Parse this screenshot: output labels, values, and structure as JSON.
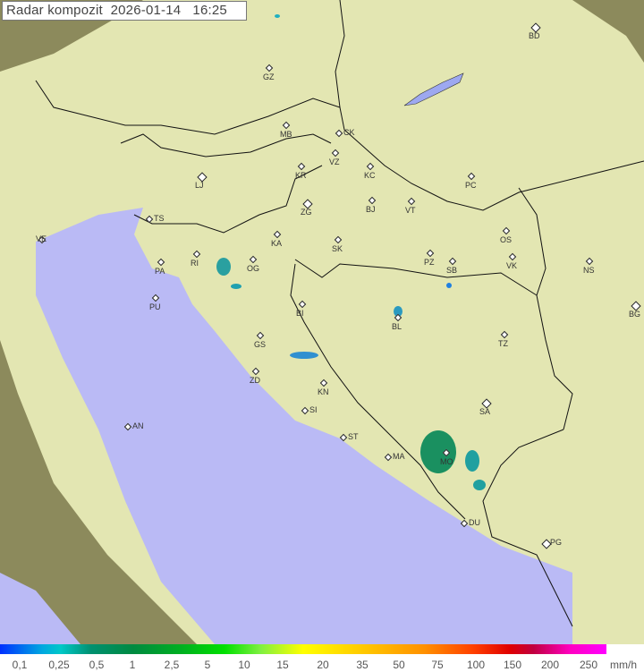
{
  "title": "Radar kompozit  2026-01-14   16:25",
  "legend": {
    "ticks": [
      "0,1",
      "0,25",
      "0,5",
      "1",
      "2,5",
      "5",
      "10",
      "15",
      "20",
      "35",
      "50",
      "75",
      "100",
      "150",
      "200",
      "250"
    ],
    "unit": "mm/h"
  },
  "colors": {
    "sea": "#babaf5",
    "land_in_coverage": "#e4e6b0",
    "land_outside": "#8c8a5c",
    "borders": "#111111",
    "radar_echo": "#1a9a7a"
  },
  "places": [
    "BD",
    "GZ",
    "MB",
    "CK",
    "VZ",
    "KR",
    "KC",
    "PC",
    "LJ",
    "ZG",
    "BJ",
    "VT",
    "TS",
    "VE",
    "RI",
    "KA",
    "SK",
    "OS",
    "PA",
    "OG",
    "PZ",
    "SB",
    "VK",
    "NS",
    "PU",
    "BI",
    "BL",
    "BG",
    "GS",
    "TZ",
    "ZD",
    "KN",
    "SA",
    "SI",
    "ST",
    "AN",
    "MA",
    "MO",
    "DU",
    "PG"
  ]
}
